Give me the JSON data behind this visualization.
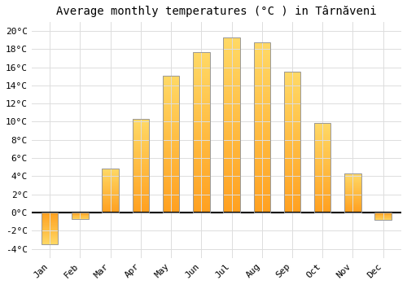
{
  "title": "Average monthly temperatures (°C ) in Târnăveni",
  "months": [
    "Jan",
    "Feb",
    "Mar",
    "Apr",
    "May",
    "Jun",
    "Jul",
    "Aug",
    "Sep",
    "Oct",
    "Nov",
    "Dec"
  ],
  "values": [
    -3.5,
    -0.7,
    4.8,
    10.3,
    15.1,
    17.7,
    19.3,
    18.7,
    15.5,
    9.9,
    4.3,
    -0.8
  ],
  "bar_color_top": "#FFD966",
  "bar_color_bottom": "#FFA020",
  "bar_edge_color": "#999999",
  "background_color": "#FFFFFF",
  "grid_color": "#DDDDDD",
  "ylim": [
    -5,
    21
  ],
  "yticks": [
    -4,
    -2,
    0,
    2,
    4,
    6,
    8,
    10,
    12,
    14,
    16,
    18,
    20
  ],
  "zero_line_color": "#000000",
  "title_fontsize": 10,
  "tick_fontsize": 8,
  "bar_width": 0.55
}
